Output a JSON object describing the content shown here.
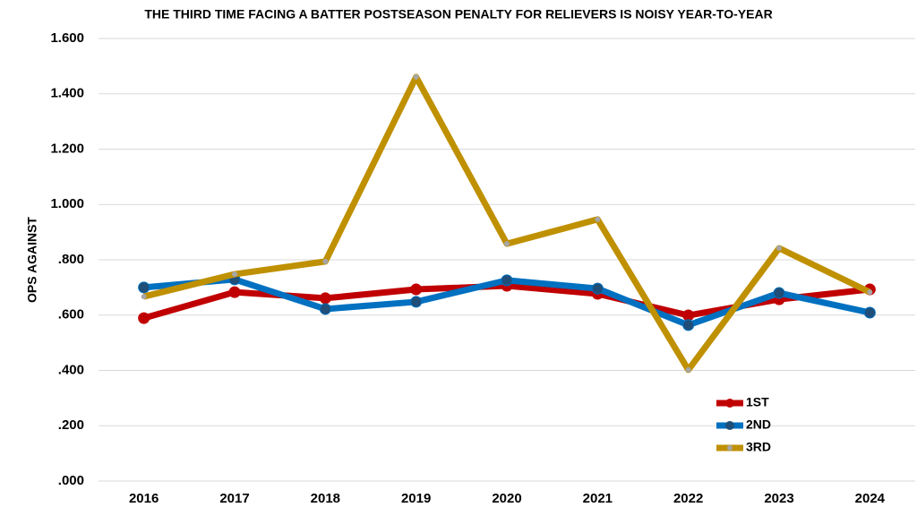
{
  "chart_data": {
    "type": "line",
    "title": "THE THIRD TIME FACING A BATTER POSTSEASON PENALTY FOR RELIEVERS IS NOISY YEAR-TO-YEAR",
    "y_label": "OPS AGAINST",
    "categories": [
      "2016",
      "2017",
      "2018",
      "2019",
      "2020",
      "2021",
      "2022",
      "2023",
      "2024"
    ],
    "series": [
      {
        "name": "1ST",
        "color": "#c00000",
        "marker_color": "#c00000",
        "values": [
          0.589,
          0.683,
          0.661,
          0.693,
          0.706,
          0.677,
          0.599,
          0.657,
          0.693
        ]
      },
      {
        "name": "2ND",
        "color": "#0070c0",
        "marker_color": "#1f4e79",
        "values": [
          0.7,
          0.729,
          0.622,
          0.648,
          0.726,
          0.696,
          0.564,
          0.68,
          0.609
        ]
      },
      {
        "name": "3RD",
        "color": "#bf9000",
        "marker_color": "#a6a6a6",
        "values": [
          0.667,
          0.748,
          0.794,
          1.461,
          0.858,
          0.946,
          0.402,
          0.842,
          0.683
        ]
      }
    ],
    "ylim": [
      0,
      1.6
    ],
    "yticks": [
      {
        "value": 0,
        "label": ".000"
      },
      {
        "value": 0.2,
        "label": ".200"
      },
      {
        "value": 0.4,
        "label": ".400"
      },
      {
        "value": 0.6,
        "label": ".600"
      },
      {
        "value": 0.8,
        "label": ".800"
      },
      {
        "value": 1.0,
        "label": "1.000"
      },
      {
        "value": 1.2,
        "label": "1.200"
      },
      {
        "value": 1.4,
        "label": "1.400"
      },
      {
        "value": 1.6,
        "label": "1.600"
      }
    ],
    "grid": true,
    "legend_position": "lower right"
  }
}
